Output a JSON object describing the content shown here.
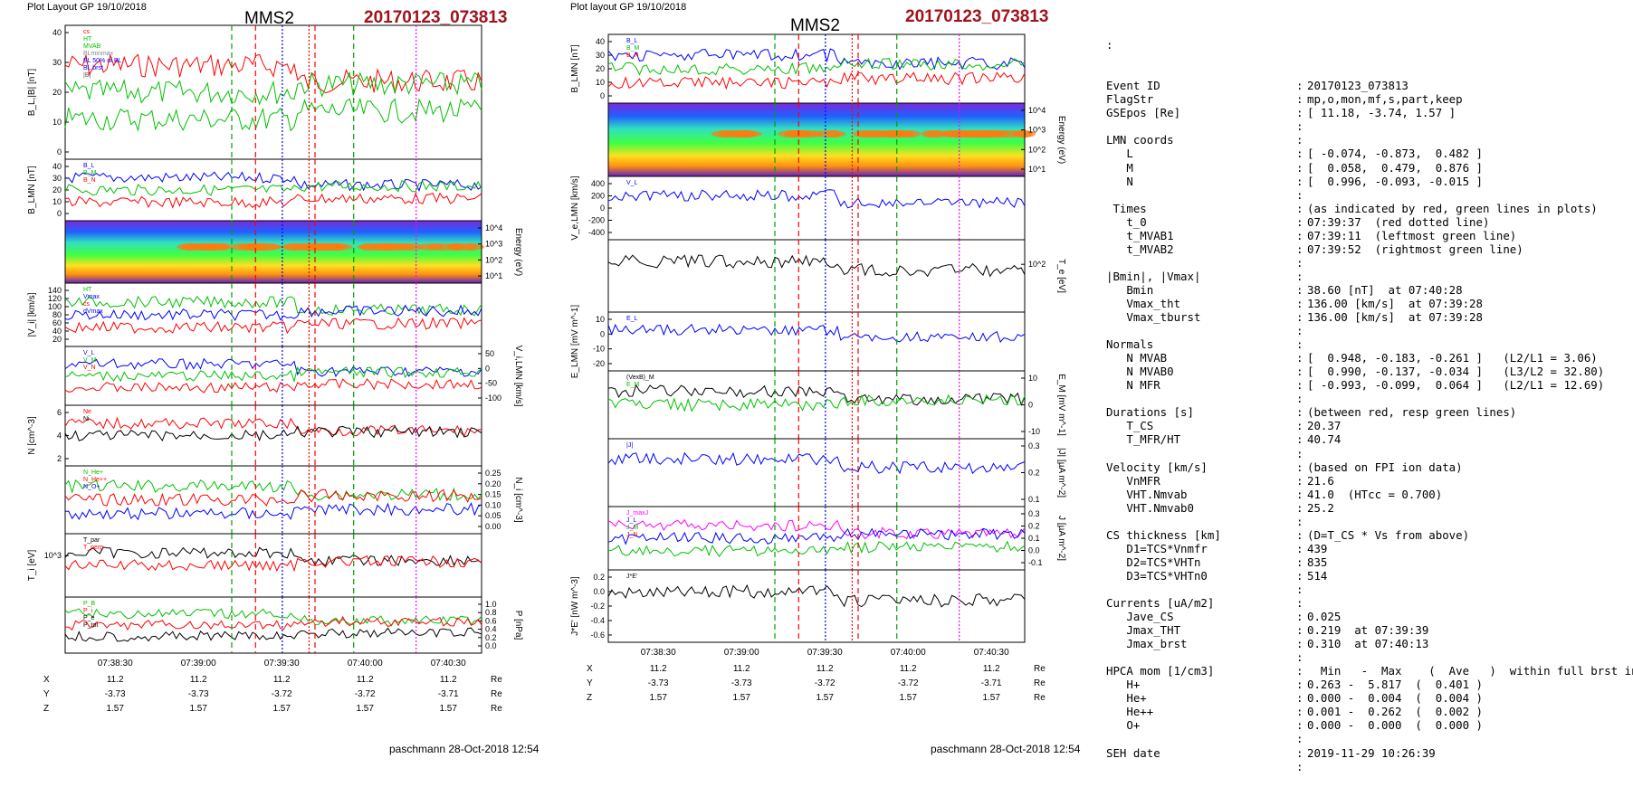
{
  "figure1": {
    "header": "Plot Layout GP 19/10/2018",
    "title": "MMS2",
    "event": "20170123_073813",
    "footer": "paschmann 28-Oct-2018 12:54",
    "xticks": [
      "07:38:30",
      "07:39:00",
      "07:39:30",
      "07:40:00",
      "07:40:30"
    ],
    "pos_rows": [
      {
        "label": "X",
        "values": [
          "11.2",
          "11.2",
          "11.2",
          "11.2",
          "11.2"
        ],
        "unit": "Re"
      },
      {
        "label": "Y",
        "values": [
          "-3.73",
          "-3.73",
          "-3.72",
          "-3.72",
          "-3.71"
        ],
        "unit": "Re"
      },
      {
        "label": "Z",
        "values": [
          "1.57",
          "1.57",
          "1.57",
          "1.57",
          "1.57"
        ],
        "unit": "Re"
      }
    ],
    "panels": [
      {
        "ylabel": "B_L,|B| [nT]",
        "yticks": [
          "40",
          "30",
          "20",
          "10",
          "0"
        ],
        "legend": [
          "cs",
          "HT",
          "MVAB",
          "BLminmax",
          "BL 50% of BL",
          "BL brst",
          "|B|"
        ]
      },
      {
        "ylabel": "B_LMN [nT]",
        "yticks": [
          "40",
          "30",
          "20",
          "10",
          "0"
        ],
        "legend": [
          "B_L",
          "B_M",
          "B_N"
        ]
      },
      {
        "ylabel": "Energy (eV)",
        "yticks": [
          "10^4",
          "10^3",
          "10^2",
          "10^1"
        ],
        "legend": []
      },
      {
        "ylabel": "|V_i| [km/s]",
        "yticks": [
          "140",
          "120",
          "100",
          "80",
          "60",
          "40",
          "20"
        ],
        "legend": [
          "HT",
          "Vmax",
          "cs",
          "dVmax"
        ]
      },
      {
        "ylabel": "V_i,LMN [km/s]",
        "yticks": [
          "50",
          "0",
          "-50",
          "-100"
        ],
        "legend": [
          "V_L",
          "V_M",
          "V_N"
        ]
      },
      {
        "ylabel": "N [cm^-3]",
        "yticks": [
          "6",
          "4",
          "2"
        ],
        "legend": [
          "Ne",
          "Ni"
        ]
      },
      {
        "ylabel": "N_i [cm^-3]",
        "yticks": [
          "0.25",
          "0.20",
          "0.15",
          "0.10",
          "0.05",
          "0.00"
        ],
        "legend": [
          "N_He+",
          "N_He++",
          "N_O+"
        ]
      },
      {
        "ylabel": "T_i [eV]",
        "yticks": [
          "10^3"
        ],
        "legend": [
          "T_par",
          "T_perp"
        ]
      },
      {
        "ylabel": "P [nPa]",
        "yticks": [
          "1.0",
          "0.8",
          "0.6",
          "0.4",
          "0.2",
          "0.0"
        ],
        "legend": [
          "P_B",
          "P_i",
          "P_e",
          "P_tot"
        ]
      }
    ]
  },
  "figure2": {
    "header": "Plot layout GP 19/10/2018",
    "title": "MMS2",
    "event": "20170123_073813",
    "footer": "paschmann 28-Oct-2018 12:54",
    "xticks": [
      "07:38:30",
      "07:39:00",
      "07:39:30",
      "07:40:00",
      "07:40:30"
    ],
    "pos_rows": [
      {
        "label": "X",
        "values": [
          "11.2",
          "11.2",
          "11.2",
          "11.2",
          "11.2"
        ],
        "unit": "Re"
      },
      {
        "label": "Y",
        "values": [
          "-3.73",
          "-3.73",
          "-3.72",
          "-3.72",
          "-3.71"
        ],
        "unit": "Re"
      },
      {
        "label": "Z",
        "values": [
          "1.57",
          "1.57",
          "1.57",
          "1.57",
          "1.57"
        ],
        "unit": "Re"
      }
    ],
    "panels": [
      {
        "ylabel": "B_LMN [nT]",
        "yticks": [
          "40",
          "30",
          "20",
          "10",
          "0"
        ],
        "legend": [
          "B_L",
          "B_M",
          "B_N"
        ]
      },
      {
        "ylabel": "Energy (eV)",
        "yticks": [
          "10^4",
          "10^3",
          "10^2",
          "10^1"
        ],
        "legend": []
      },
      {
        "ylabel": "V_e,LMN [km/s]",
        "yticks": [
          "400",
          "200",
          "0",
          "-200",
          "-400"
        ],
        "legend": [
          "V_L"
        ]
      },
      {
        "ylabel": "T_e [eV]",
        "yticks": [
          "10^2"
        ],
        "legend": []
      },
      {
        "ylabel": "E_LMN [mV m^-1]",
        "yticks": [
          "10",
          "0",
          "-10",
          "-20"
        ],
        "legend": [
          "E_L"
        ]
      },
      {
        "ylabel": "E_M [mV m^-1]",
        "yticks": [
          "10",
          "0",
          "-10"
        ],
        "legend": [
          "(VexB)_M",
          "E_M"
        ]
      },
      {
        "ylabel": "|J| [µA m^-2]",
        "yticks": [
          "0.3",
          "0.2",
          "0.1"
        ],
        "legend": [
          "|J|"
        ]
      },
      {
        "ylabel": "J [µA m^-2]",
        "yticks": [
          "0.3",
          "0.2",
          "0.1",
          "0.0",
          "-0.1"
        ],
        "legend": [
          "J_maxJ",
          "J_L",
          "J_M",
          "J_N"
        ]
      },
      {
        "ylabel": "J*E' [nW m^-3]",
        "yticks": [
          "0.2",
          "0.0",
          "-0.2",
          "-0.4",
          "-0.6"
        ],
        "legend": [
          "J*E'"
        ]
      }
    ]
  },
  "summary": {
    "leading": ":",
    "rows": [
      {
        "key": "Event ID",
        "val": "20170123_073813"
      },
      {
        "key": "FlagStr",
        "val": "mp,o,mon,mf,s,part,keep"
      },
      {
        "key": "GSEpos [Re]",
        "val": "[ 11.18, -3.74, 1.57 ]"
      },
      {
        "key": "",
        "val": ""
      },
      {
        "key": "LMN coords",
        "val": ""
      },
      {
        "key": "   L",
        "val": "[ -0.074, -0.873,  0.482 ]"
      },
      {
        "key": "   M",
        "val": "[  0.058,  0.479,  0.876 ]"
      },
      {
        "key": "   N",
        "val": "[  0.996, -0.093, -0.015 ]"
      },
      {
        "key": "",
        "val": ""
      },
      {
        "key": " Times",
        "val": "(as indicated by red, green lines in plots)"
      },
      {
        "key": "   t_0",
        "val": "07:39:37  (red dotted line)"
      },
      {
        "key": "   t_MVAB1",
        "val": "07:39:11  (leftmost green line)"
      },
      {
        "key": "   t_MVAB2",
        "val": "07:39:52  (rightmost green line)"
      },
      {
        "key": "",
        "val": ""
      },
      {
        "key": "|Bmin|, |Vmax|",
        "val": ""
      },
      {
        "key": "   Bmin",
        "val": "38.60 [nT]  at 07:40:28"
      },
      {
        "key": "   Vmax_tht",
        "val": "136.00 [km/s]  at 07:39:28"
      },
      {
        "key": "   Vmax_tburst",
        "val": "136.00 [km/s]  at 07:39:28"
      },
      {
        "key": "",
        "val": ""
      },
      {
        "key": "Normals",
        "val": ""
      },
      {
        "key": "   N MVAB",
        "val": "[  0.948, -0.183, -0.261 ]   (L2/L1 = 3.06)"
      },
      {
        "key": "   N MVAB0",
        "val": "[  0.990, -0.137, -0.034 ]   (L3/L2 = 32.80)"
      },
      {
        "key": "   N MFR",
        "val": "[ -0.993, -0.099,  0.064 ]   (L2/L1 = 12.69)"
      },
      {
        "key": "",
        "val": ""
      },
      {
        "key": "Durations [s]",
        "val": "(between red, resp green lines)"
      },
      {
        "key": "   T_CS",
        "val": "20.37"
      },
      {
        "key": "   T_MFR/HT",
        "val": "40.74"
      },
      {
        "key": "",
        "val": ""
      },
      {
        "key": "Velocity [km/s]",
        "val": "(based on FPI ion data)"
      },
      {
        "key": "   VnMFR",
        "val": "21.6"
      },
      {
        "key": "   VHT.Nmvab",
        "val": "41.0  (HTcc = 0.700)"
      },
      {
        "key": "   VHT.Nmvab0",
        "val": "25.2"
      },
      {
        "key": "",
        "val": ""
      },
      {
        "key": "CS thickness [km]",
        "val": "(D=T_CS * Vs from above)"
      },
      {
        "key": "   D1=TCS*Vnmfr",
        "val": "439"
      },
      {
        "key": "   D2=TCS*VHTn",
        "val": "835"
      },
      {
        "key": "   D3=TCS*VHTn0",
        "val": "514"
      },
      {
        "key": "",
        "val": ""
      },
      {
        "key": "Currents [uA/m2]",
        "val": ""
      },
      {
        "key": "   Jave_CS",
        "val": "0.025"
      },
      {
        "key": "   Jmax_THT",
        "val": "0.219  at 07:39:39"
      },
      {
        "key": "   Jmax_brst",
        "val": "0.310  at 07:40:13"
      },
      {
        "key": "",
        "val": ""
      },
      {
        "key": "HPCA mom [1/cm3]",
        "val": "  Min   -  Max    (  Ave   )  within full brst int"
      },
      {
        "key": "   H+",
        "val": "0.263 -  5.817  (  0.401 )"
      },
      {
        "key": "   He+",
        "val": "0.000 -  0.004  (  0.004 )"
      },
      {
        "key": "   He++",
        "val": "0.001 -  0.262  (  0.002 )"
      },
      {
        "key": "   O+",
        "val": "0.000 -  0.000  (  0.000 )"
      },
      {
        "key": "",
        "val": ""
      },
      {
        "key": "SEH date",
        "val": "2019-11-29 10:26:39"
      },
      {
        "key": "",
        "val": ""
      }
    ]
  },
  "chart_data": [
    {
      "type": "line",
      "title": "MMS2",
      "subtitle": "20170123_073813",
      "x_range": [
        "07:38:15",
        "07:40:35"
      ],
      "markers": {
        "red_dashed": [
          "07:39:19",
          "07:39:39"
        ],
        "red_dotted": "07:39:37",
        "green_dashed": [
          "07:39:11",
          "07:39:52"
        ],
        "blue_dotted": "07:39:28",
        "magenta_dotted": "07:40:13"
      },
      "series": [
        {
          "name": "|B|",
          "points": [
            [
              "07:38:15",
              42
            ],
            [
              "07:38:40",
              41
            ],
            [
              "07:39:00",
              45
            ],
            [
              "07:39:20",
              42
            ],
            [
              "07:39:40",
              38
            ],
            [
              "07:40:00",
              40
            ],
            [
              "07:40:35",
              38
            ]
          ]
        },
        {
          "name": "BL brst",
          "points": [
            [
              "07:38:15",
              24
            ],
            [
              "07:38:45",
              26
            ],
            [
              "07:39:05",
              25
            ],
            [
              "07:39:25",
              23
            ],
            [
              "07:39:35",
              17
            ],
            [
              "07:39:42",
              8
            ],
            [
              "07:40:00",
              9
            ],
            [
              "07:40:15",
              11
            ],
            [
              "07:40:35",
              11
            ]
          ]
        },
        {
          "name": "BL 50% of BL",
          "points": [
            [
              "07:38:15",
              17
            ],
            [
              "07:40:35",
              17
            ]
          ]
        },
        {
          "name": "N_He++",
          "points": [
            [
              "07:38:30",
              0
            ],
            [
              "07:38:50",
              0.04
            ],
            [
              "07:39:05",
              0.12
            ],
            [
              "07:39:15",
              0.2
            ],
            [
              "07:39:25",
              0.25
            ],
            [
              "07:39:35",
              0.16
            ],
            [
              "07:39:45",
              0.25
            ],
            [
              "07:40:05",
              0.25
            ],
            [
              "07:40:20",
              0.21
            ]
          ]
        }
      ]
    },
    {
      "type": "line",
      "title": "MMS2",
      "subtitle": "20170123_073813",
      "x_range": [
        "07:38:15",
        "07:40:35"
      ],
      "markers": {
        "red_dashed": [
          "07:39:19",
          "07:39:39"
        ],
        "red_dotted": "07:39:37",
        "green_dashed": [
          "07:39:11",
          "07:39:52"
        ],
        "blue_dotted": "07:39:28",
        "magenta_dotted": "07:40:13"
      },
      "series": [
        {
          "name": "B_M",
          "points": [
            [
              "07:38:15",
              38
            ],
            [
              "07:39:00",
              34
            ],
            [
              "07:39:30",
              32
            ],
            [
              "07:40:00",
              36
            ],
            [
              "07:40:35",
              35
            ]
          ]
        },
        {
          "name": "B_L",
          "points": [
            [
              "07:38:15",
              22
            ],
            [
              "07:39:00",
              24
            ],
            [
              "07:39:30",
              20
            ],
            [
              "07:39:45",
              10
            ],
            [
              "07:40:35",
              11
            ]
          ]
        },
        {
          "name": "T_e",
          "points": [
            [
              "07:38:15",
              150
            ],
            [
              "07:38:50",
              110
            ],
            [
              "07:39:05",
              40
            ],
            [
              "07:39:40",
              25
            ],
            [
              "07:40:35",
              20
            ]
          ]
        }
      ]
    }
  ]
}
